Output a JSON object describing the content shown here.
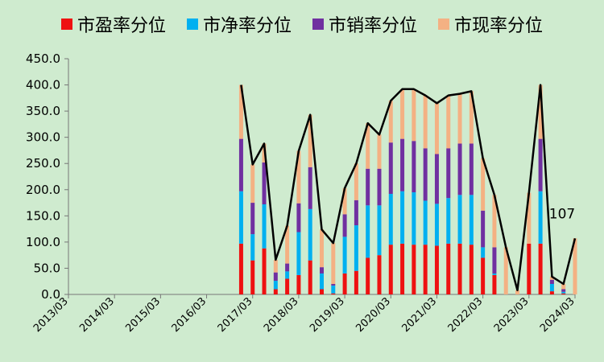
{
  "chart_data": {
    "type": "bar",
    "subtype": "stacked-bar-with-line",
    "legend_position": "top",
    "grid": false,
    "ylim": [
      0,
      450
    ],
    "yticks": [
      "0.0",
      "50.0",
      "100.0",
      "150.0",
      "200.0",
      "250.0",
      "300.0",
      "350.0",
      "400.0",
      "450.0"
    ],
    "x_tick_labels": [
      "2013/03",
      "2014/03",
      "2015/03",
      "2016/03",
      "2017/03",
      "2018/03",
      "2019/03",
      "2020/03",
      "2021/03",
      "2022/03",
      "2023/03",
      "2024/03"
    ],
    "colors": {
      "pe": "#ee1111",
      "pb": "#00b0f0",
      "ps": "#7030a0",
      "pcf": "#f4b183",
      "total_line": "#000000",
      "background": "#cfebcf"
    },
    "series": [
      {
        "name": "市盈率分位",
        "key": "pe"
      },
      {
        "name": "市净率分位",
        "key": "pb"
      },
      {
        "name": "市销率分位",
        "key": "ps"
      },
      {
        "name": "市现率分位",
        "key": "pcf"
      }
    ],
    "points": [
      {
        "date": "2016/12",
        "pe": 97,
        "pb": 100,
        "ps": 100,
        "pcf": 103,
        "total": 400
      },
      {
        "date": "2017/03",
        "pe": 65,
        "pb": 50,
        "ps": 60,
        "pcf": 73,
        "total": 248
      },
      {
        "date": "2017/06",
        "pe": 88,
        "pb": 84,
        "ps": 80,
        "pcf": 36,
        "total": 288
      },
      {
        "date": "2017/09",
        "pe": 10,
        "pb": 16,
        "ps": 16,
        "pcf": 24,
        "total": 66
      },
      {
        "date": "2017/12",
        "pe": 30,
        "pb": 14,
        "ps": 15,
        "pcf": 72,
        "total": 131
      },
      {
        "date": "2018/03",
        "pe": 37,
        "pb": 82,
        "ps": 55,
        "pcf": 100,
        "total": 274
      },
      {
        "date": "2018/06",
        "pe": 65,
        "pb": 98,
        "ps": 80,
        "pcf": 100,
        "total": 343
      },
      {
        "date": "2018/09",
        "pe": 10,
        "pb": 30,
        "ps": 12,
        "pcf": 72,
        "total": 124
      },
      {
        "date": "2018/12",
        "pe": 2,
        "pb": 15,
        "ps": 3,
        "pcf": 78,
        "total": 98
      },
      {
        "date": "2019/03",
        "pe": 40,
        "pb": 70,
        "ps": 43,
        "pcf": 50,
        "total": 203
      },
      {
        "date": "2019/06",
        "pe": 45,
        "pb": 87,
        "ps": 48,
        "pcf": 70,
        "total": 250
      },
      {
        "date": "2019/09",
        "pe": 70,
        "pb": 100,
        "ps": 70,
        "pcf": 87,
        "total": 327
      },
      {
        "date": "2019/12",
        "pe": 75,
        "pb": 95,
        "ps": 70,
        "pcf": 65,
        "total": 305
      },
      {
        "date": "2020/03",
        "pe": 95,
        "pb": 97,
        "ps": 98,
        "pcf": 80,
        "total": 370
      },
      {
        "date": "2020/06",
        "pe": 97,
        "pb": 100,
        "ps": 100,
        "pcf": 95,
        "total": 392
      },
      {
        "date": "2020/09",
        "pe": 95,
        "pb": 100,
        "ps": 98,
        "pcf": 99,
        "total": 392
      },
      {
        "date": "2020/12",
        "pe": 95,
        "pb": 84,
        "ps": 100,
        "pcf": 101,
        "total": 380
      },
      {
        "date": "2021/03",
        "pe": 93,
        "pb": 80,
        "ps": 95,
        "pcf": 97,
        "total": 365
      },
      {
        "date": "2021/06",
        "pe": 97,
        "pb": 87,
        "ps": 95,
        "pcf": 101,
        "total": 380
      },
      {
        "date": "2021/09",
        "pe": 97,
        "pb": 93,
        "ps": 98,
        "pcf": 95,
        "total": 383
      },
      {
        "date": "2021/12",
        "pe": 95,
        "pb": 95,
        "ps": 98,
        "pcf": 100,
        "total": 388
      },
      {
        "date": "2022/03",
        "pe": 70,
        "pb": 20,
        "ps": 70,
        "pcf": 100,
        "total": 260
      },
      {
        "date": "2022/06",
        "pe": 37,
        "pb": 3,
        "ps": 50,
        "pcf": 100,
        "total": 190
      },
      {
        "date": "2022/09",
        "pe": 0,
        "pb": 0,
        "ps": 0,
        "pcf": 90,
        "total": 90
      },
      {
        "date": "2022/12",
        "pe": 0,
        "pb": 0,
        "ps": 0,
        "pcf": 8,
        "total": 8
      },
      {
        "date": "2023/03",
        "pe": 97,
        "pb": 0,
        "ps": 0,
        "pcf": 97,
        "total": 194
      },
      {
        "date": "2023/06",
        "pe": 97,
        "pb": 100,
        "ps": 100,
        "pcf": 103,
        "total": 400
      },
      {
        "date": "2023/09",
        "pe": 6,
        "pb": 14,
        "ps": 8,
        "pcf": 6,
        "total": 34
      },
      {
        "date": "2023/12",
        "pe": 2,
        "pb": 3,
        "ps": 5,
        "pcf": 10,
        "total": 20
      },
      {
        "date": "2024/03",
        "pe": 0,
        "pb": 0,
        "ps": 0,
        "pcf": 107,
        "total": 107
      }
    ],
    "annotation": "107"
  }
}
